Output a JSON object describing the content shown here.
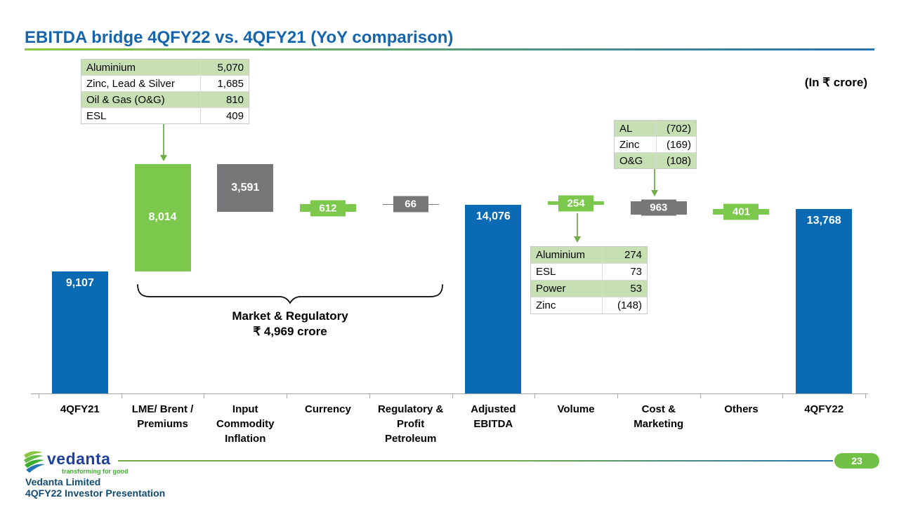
{
  "header": {
    "title": "EBITDA bridge 4QFY22 vs. 4QFY21 (YoY comparison)",
    "unit_note": "(In ₹ crore)"
  },
  "colors": {
    "total": "#0A6AB3",
    "positive": "#7CC84C",
    "negative": "#77777A",
    "table_fill": "#C6E0B4",
    "arrow": "#70AD47",
    "title_blue": "#1565AD",
    "underline_green": "#8CC63E",
    "underline_blue": "#2573B4",
    "footer_text": "#114A72",
    "badge_green": "#6FC044"
  },
  "chart_data": {
    "type": "bar",
    "subtype": "waterfall",
    "title": "EBITDA bridge 4QFY22 vs. 4QFY21 (YoY comparison)",
    "unit": "₹ crore",
    "baseline": 0,
    "legend": "none",
    "grid": false,
    "columns": [
      {
        "label": "4QFY21",
        "lines": [
          "4QFY21"
        ],
        "value": 9107,
        "display": "9,107",
        "kind": "total",
        "style": "bar",
        "label_pos": "top"
      },
      {
        "label": "LME/ Brent / Premiums",
        "lines": [
          "LME/ Brent /",
          "Premiums"
        ],
        "value": 8014,
        "display": "8,014",
        "kind": "increase",
        "style": "bar",
        "label_pos": "center"
      },
      {
        "label": "Input Commodity Inflation",
        "lines": [
          "Input",
          "Commodity",
          "Inflation"
        ],
        "value": -3591,
        "display": "3,591",
        "kind": "decrease",
        "style": "bar",
        "label_pos": "center"
      },
      {
        "label": "Currency",
        "lines": [
          "Currency"
        ],
        "value": 612,
        "display": "612",
        "kind": "increase",
        "style": "marker"
      },
      {
        "label": "Regulatory & Profit Petroleum",
        "lines": [
          "Regulatory &",
          "Profit",
          "Petroleum"
        ],
        "value": -66,
        "display": "66",
        "kind": "decrease",
        "style": "marker"
      },
      {
        "label": "Adjusted EBITDA",
        "lines": [
          "Adjusted",
          "EBITDA"
        ],
        "value": 14076,
        "display": "14,076",
        "kind": "total",
        "style": "bar",
        "label_pos": "top"
      },
      {
        "label": "Volume",
        "lines": [
          "Volume"
        ],
        "value": 254,
        "display": "254",
        "kind": "increase",
        "style": "marker"
      },
      {
        "label": "Cost & Marketing",
        "lines": [
          "Cost &",
          "Marketing"
        ],
        "value": -963,
        "display": "963",
        "kind": "decrease",
        "style": "marker"
      },
      {
        "label": "Others",
        "lines": [
          "Others"
        ],
        "value": 401,
        "display": "401",
        "kind": "increase",
        "style": "marker"
      },
      {
        "label": "4QFY22",
        "lines": [
          "4QFY22"
        ],
        "value": 13768,
        "display": "13,768",
        "kind": "total",
        "style": "bar",
        "label_pos": "top"
      }
    ]
  },
  "annotations": {
    "lme_breakdown": {
      "rows": [
        {
          "label": "Aluminium",
          "value": "5,070"
        },
        {
          "label": "Zinc, Lead & Silver",
          "value": "1,685"
        },
        {
          "label": "Oil & Gas (O&G)",
          "value": "810"
        },
        {
          "label": "ESL",
          "value": "409"
        }
      ]
    },
    "cost_breakdown": {
      "rows": [
        {
          "label": "AL",
          "value": "(702)"
        },
        {
          "label": "Zinc",
          "value": "(169)"
        },
        {
          "label": "O&G",
          "value": "(108)"
        }
      ]
    },
    "volume_breakdown": {
      "rows": [
        {
          "label": "Aluminium",
          "value": "274"
        },
        {
          "label": "ESL",
          "value": "73"
        },
        {
          "label": "Power",
          "value": "53"
        },
        {
          "label": "Zinc",
          "value": "(148)"
        }
      ]
    },
    "brace_label_line1": "Market & Regulatory",
    "brace_label_line2": "₹ 4,969 crore"
  },
  "footer": {
    "logo_text": "vedanta",
    "logo_tagline": "transforming for good",
    "company": "Vedanta Limited",
    "presentation": "4QFY22 Investor Presentation",
    "page_number": "23"
  }
}
